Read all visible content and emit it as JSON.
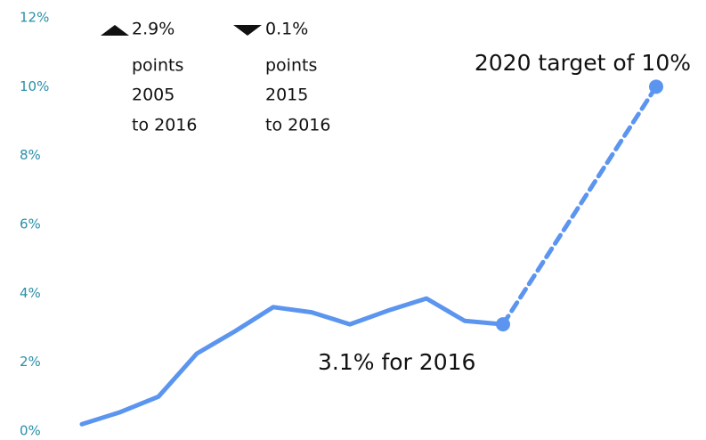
{
  "chart_data": {
    "type": "line",
    "ylim": [
      0,
      12
    ],
    "yticks": [
      {
        "value": 0,
        "label": "0%"
      },
      {
        "value": 2,
        "label": "2%"
      },
      {
        "value": 4,
        "label": "4%"
      },
      {
        "value": 6,
        "label": "6%"
      },
      {
        "value": 8,
        "label": "8%"
      },
      {
        "value": 10,
        "label": "10%"
      },
      {
        "value": 12,
        "label": "12%"
      }
    ],
    "xlim": [
      2005,
      2020
    ],
    "series": [
      {
        "color": "#5b95ef",
        "dashed": false,
        "marker": false,
        "x": [
          2005,
          2006,
          2007,
          2008,
          2009,
          2010,
          2011,
          2012,
          2013,
          2014,
          2015,
          2016
        ],
        "values": [
          0.2,
          0.55,
          1.0,
          2.25,
          2.9,
          3.6,
          3.45,
          3.1,
          3.5,
          3.85,
          3.2,
          3.1
        ]
      },
      {
        "color": "#5b95ef",
        "dashed": true,
        "marker": true,
        "x": [
          2016,
          2020
        ],
        "values": [
          3.1,
          10
        ]
      }
    ],
    "annotations": [
      {
        "text": "2020 target of 10%"
      },
      {
        "text": "3.1% for 2016"
      }
    ],
    "changes": [
      {
        "direction": "up",
        "lines": [
          "2.9%",
          "points",
          "2005",
          "to 2016"
        ]
      },
      {
        "direction": "down",
        "lines": [
          "0.1%",
          "points",
          "2015",
          "to 2016"
        ]
      }
    ]
  }
}
